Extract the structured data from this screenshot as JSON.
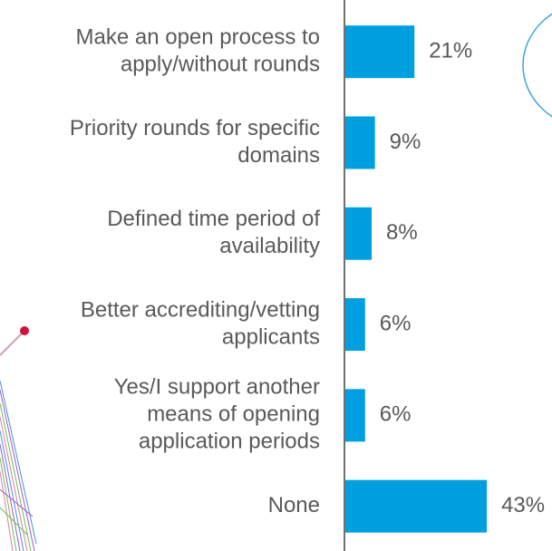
{
  "chart_data": {
    "type": "bar",
    "orientation": "horizontal",
    "categories": [
      [
        "Make an open process to",
        "apply/without rounds"
      ],
      [
        "Priority rounds for specific",
        "domains"
      ],
      [
        "Defined time period of",
        "availability"
      ],
      [
        "Better accrediting/vetting",
        "applicants"
      ],
      [
        "Yes/I support another",
        "means of opening",
        "application periods"
      ],
      [
        "None"
      ]
    ],
    "values": [
      21,
      9,
      8,
      6,
      6,
      43
    ],
    "value_labels": [
      "21%",
      "9%",
      "8%",
      "6%",
      "6%",
      "43%"
    ],
    "color": "#009fdf"
  }
}
